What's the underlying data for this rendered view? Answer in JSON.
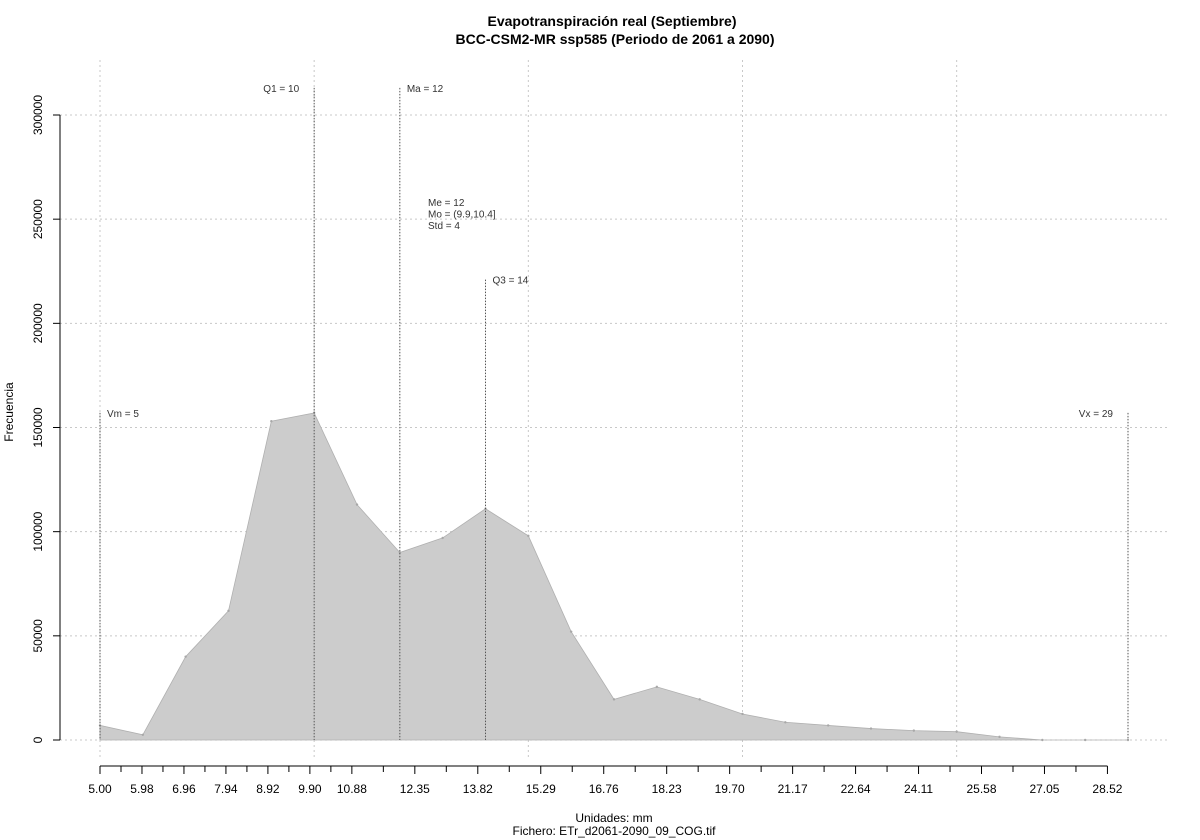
{
  "chart_data": {
    "type": "area",
    "title": "Evapotranspiración real (Septiembre)",
    "subtitle": "BCC-CSM2-MR ssp585 (Periodo de 2061 a 2090)",
    "xlabel": "Unidades: mm",
    "ylabel": "Frecuencia",
    "caption": "Fichero: ETr_d2061-2090_09_COG.tif",
    "xlim": [
      5.0,
      29.0
    ],
    "ylim": [
      0,
      310000
    ],
    "grid": true,
    "x_ticks": [
      "5.00",
      "5.98",
      "6.96",
      "7.94",
      "8.92",
      "9.90",
      "10.88",
      "12.35",
      "13.82",
      "15.29",
      "16.76",
      "18.23",
      "19.70",
      "21.17",
      "22.64",
      "24.11",
      "25.58",
      "27.05",
      "28.52"
    ],
    "y_ticks": [
      "0",
      "50000",
      "100000",
      "150000",
      "200000",
      "250000",
      "300000"
    ],
    "x": [
      5.0,
      6.0,
      7.0,
      8.0,
      9.0,
      10.0,
      11.0,
      12.0,
      13.0,
      14.0,
      15.0,
      16.0,
      17.0,
      18.0,
      19.0,
      20.0,
      21.0,
      22.0,
      23.0,
      24.0,
      25.0,
      26.0,
      27.0,
      28.0,
      29.0
    ],
    "values": [
      7000,
      2500,
      40000,
      62000,
      153000,
      157000,
      113000,
      90000,
      97000,
      111000,
      98000,
      52000,
      19500,
      25500,
      19500,
      12500,
      8500,
      7000,
      5500,
      4500,
      4000,
      1500,
      0,
      0,
      0
    ],
    "fill_color": "#cccccc",
    "annotations": [
      {
        "label": "Vm = 5",
        "x": 5.0,
        "y_top": 157000,
        "align": "right"
      },
      {
        "label": "Q1 = 10",
        "x": 10.0,
        "y_top": 313000,
        "align": "left"
      },
      {
        "label": "Ma = 12",
        "x": 12.0,
        "y_top": 313000,
        "align": "right"
      },
      {
        "label": "Q3 = 14",
        "x": 14.0,
        "y_top": 221000,
        "align": "right"
      },
      {
        "label": "Vx = 29",
        "x": 29.0,
        "y_top": 157000,
        "align": "left"
      }
    ],
    "stats": [
      "Me = 12",
      "Mo = (9.9,10.4]",
      "Std = 4"
    ]
  }
}
